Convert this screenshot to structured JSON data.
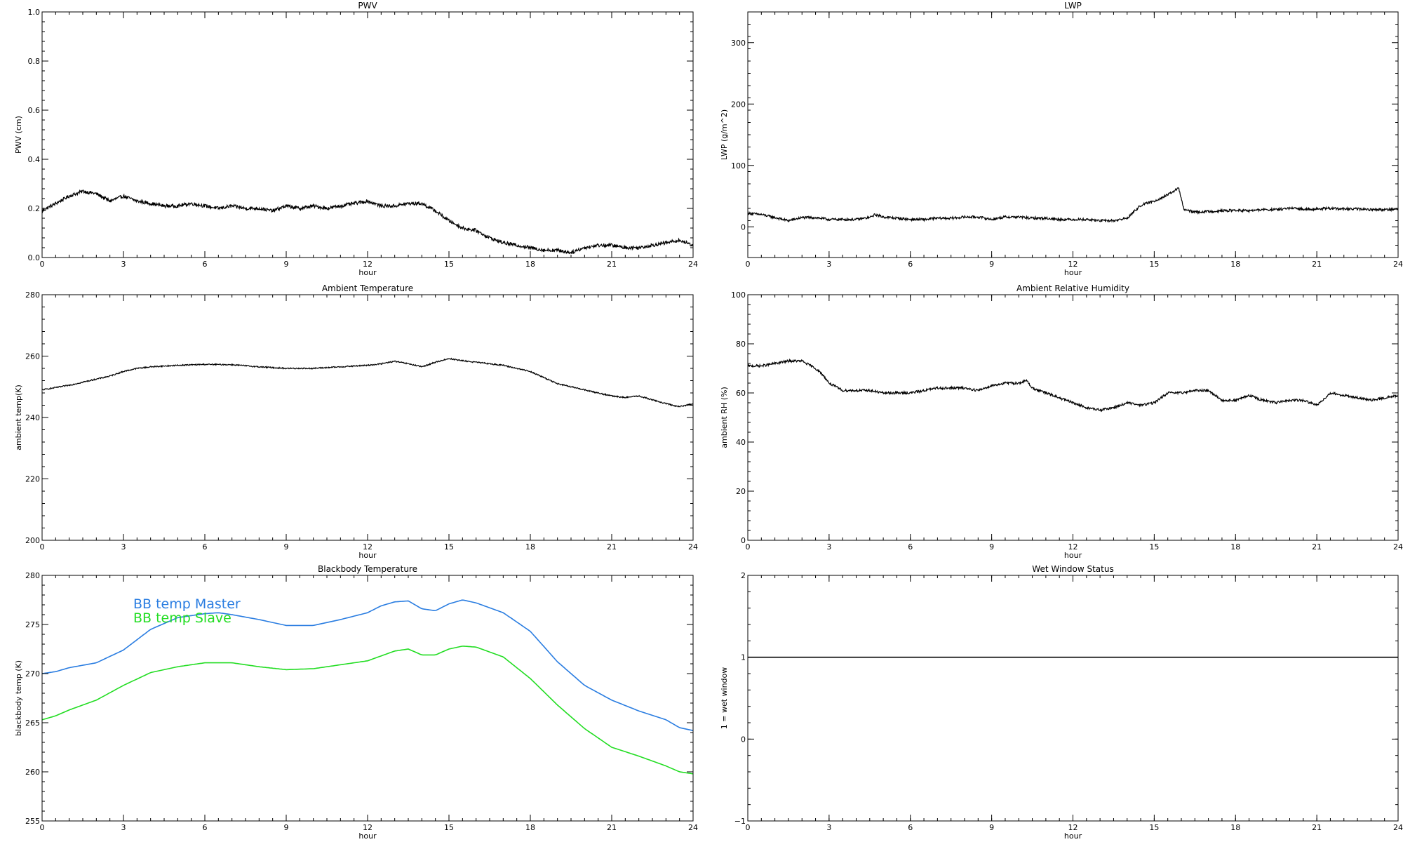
{
  "chart_data": [
    {
      "id": "pwv",
      "type": "line",
      "title": "PWV",
      "xlabel": "hour",
      "ylabel": "PWV (cm)",
      "xlim": [
        0,
        24
      ],
      "ylim": [
        0.0,
        1.0
      ],
      "xticks": [
        0,
        3,
        6,
        9,
        12,
        15,
        18,
        21,
        24
      ],
      "xtick_labels": [
        "0",
        "3",
        "6",
        "9",
        "12",
        "15",
        "18",
        "21",
        "24"
      ],
      "yticks": [
        0.0,
        0.2,
        0.4,
        0.6,
        0.8,
        1.0
      ],
      "ytick_labels": [
        "0.0",
        "0.2",
        "0.4",
        "0.6",
        "0.8",
        "1.0"
      ],
      "series": [
        {
          "color": "#000000",
          "noise": 0.007,
          "x": [
            0,
            0.5,
            1,
            1.5,
            2,
            2.5,
            3,
            3.5,
            4,
            4.5,
            5,
            5.5,
            6,
            6.5,
            7,
            7.5,
            8,
            8.5,
            9,
            9.5,
            10,
            10.5,
            11,
            11.5,
            12,
            12.5,
            13,
            13.5,
            14,
            14.5,
            15,
            15.5,
            16,
            16.5,
            17,
            17.5,
            18,
            18.5,
            19,
            19.5,
            20,
            20.5,
            21,
            21.5,
            22,
            22.5,
            23,
            23.5,
            24
          ],
          "y": [
            0.19,
            0.22,
            0.25,
            0.27,
            0.26,
            0.23,
            0.25,
            0.23,
            0.22,
            0.21,
            0.21,
            0.22,
            0.21,
            0.2,
            0.21,
            0.2,
            0.2,
            0.19,
            0.21,
            0.2,
            0.21,
            0.2,
            0.21,
            0.22,
            0.23,
            0.21,
            0.21,
            0.22,
            0.22,
            0.19,
            0.15,
            0.12,
            0.11,
            0.08,
            0.06,
            0.05,
            0.04,
            0.03,
            0.03,
            0.02,
            0.04,
            0.05,
            0.05,
            0.04,
            0.04,
            0.05,
            0.06,
            0.07,
            0.05
          ]
        }
      ]
    },
    {
      "id": "lwp",
      "type": "line",
      "title": "LWP",
      "xlabel": "hour",
      "ylabel": "LWP (g/m^2)",
      "xlim": [
        0,
        24
      ],
      "ylim": [
        -50,
        350
      ],
      "xticks": [
        0,
        3,
        6,
        9,
        12,
        15,
        18,
        21,
        24
      ],
      "xtick_labels": [
        "0",
        "3",
        "6",
        "9",
        "12",
        "15",
        "18",
        "21",
        "24"
      ],
      "yticks": [
        0,
        100,
        200,
        300
      ],
      "ytick_labels": [
        "0",
        "100",
        "200",
        "300"
      ],
      "series": [
        {
          "color": "#000000",
          "noise": 2.0,
          "x": [
            0,
            0.5,
            1,
            1.5,
            2,
            2.5,
            3,
            3.5,
            4,
            4.5,
            4.7,
            5,
            5.5,
            6,
            6.5,
            7,
            7.5,
            8,
            8.5,
            9,
            9.5,
            10,
            10.5,
            11,
            11.5,
            12,
            12.5,
            13,
            13.5,
            14,
            14.5,
            15,
            15.5,
            15.9,
            16.1,
            16.5,
            17,
            17.5,
            18,
            18.5,
            19,
            19.5,
            20,
            20.5,
            21,
            21.5,
            22,
            22.5,
            23,
            23.5,
            24
          ],
          "y": [
            22,
            20,
            15,
            10,
            15,
            15,
            12,
            12,
            12,
            15,
            20,
            16,
            14,
            12,
            12,
            14,
            14,
            16,
            16,
            12,
            16,
            16,
            14,
            14,
            12,
            12,
            12,
            10,
            10,
            14,
            35,
            42,
            52,
            63,
            28,
            24,
            25,
            26,
            27,
            26,
            28,
            28,
            30,
            29,
            29,
            30,
            29,
            29,
            28,
            28,
            29
          ]
        }
      ]
    },
    {
      "id": "ambient-temp",
      "type": "line",
      "title": "Ambient Temperature",
      "xlabel": "hour",
      "ylabel": "ambient temp(K)",
      "xlim": [
        0,
        24
      ],
      "ylim": [
        200,
        280
      ],
      "xticks": [
        0,
        3,
        6,
        9,
        12,
        15,
        18,
        21,
        24
      ],
      "xtick_labels": [
        "0",
        "3",
        "6",
        "9",
        "12",
        "15",
        "18",
        "21",
        "24"
      ],
      "yticks": [
        200,
        220,
        240,
        260,
        280
      ],
      "ytick_labels": [
        "200",
        "220",
        "240",
        "260",
        "280"
      ],
      "series": [
        {
          "color": "#000000",
          "noise": 0.2,
          "x": [
            0,
            1,
            1.5,
            2,
            2.5,
            3,
            3.5,
            4,
            5,
            6,
            7,
            8,
            9,
            10,
            11,
            12,
            12.5,
            13,
            13.5,
            14,
            14.5,
            15,
            15.5,
            16,
            17,
            18,
            19,
            20,
            21,
            21.5,
            22,
            23,
            23.5,
            24
          ],
          "y": [
            249,
            250.5,
            251.5,
            252.5,
            253.5,
            255,
            256,
            256.5,
            257,
            257.3,
            257.2,
            256.5,
            256,
            256,
            256.5,
            257,
            257.5,
            258.3,
            257.5,
            256.5,
            258,
            259.2,
            258.5,
            258,
            257,
            255,
            251,
            249,
            247,
            246.5,
            247,
            244.5,
            243.5,
            244.5
          ]
        }
      ]
    },
    {
      "id": "ambient-rh",
      "type": "line",
      "title": "Ambient Relative Humidity",
      "xlabel": "hour",
      "ylabel": "ambient RH (%)",
      "xlim": [
        0,
        24
      ],
      "ylim": [
        0,
        100
      ],
      "xticks": [
        0,
        3,
        6,
        9,
        12,
        15,
        18,
        21,
        24
      ],
      "xtick_labels": [
        "0",
        "3",
        "6",
        "9",
        "12",
        "15",
        "18",
        "21",
        "24"
      ],
      "yticks": [
        0,
        20,
        40,
        60,
        80,
        100
      ],
      "ytick_labels": [
        "0",
        "20",
        "40",
        "60",
        "80",
        "100"
      ],
      "series": [
        {
          "color": "#000000",
          "noise": 0.5,
          "x": [
            0,
            0.5,
            1,
            1.5,
            2,
            2.5,
            2.8,
            3,
            3.5,
            4,
            4.5,
            5,
            5.5,
            6,
            6.5,
            7,
            7.5,
            8,
            8.5,
            9,
            9.5,
            10,
            10.3,
            10.5,
            11,
            11.5,
            12,
            12.5,
            13,
            13.5,
            14,
            14.5,
            15,
            15.5,
            16,
            16.5,
            17,
            17.5,
            18,
            18.5,
            19,
            19.5,
            20,
            20.5,
            21,
            21.5,
            22,
            22.5,
            23,
            23.5,
            24
          ],
          "y": [
            71,
            71,
            72,
            73,
            73,
            70,
            67,
            64,
            61,
            61,
            61,
            60,
            60,
            60,
            61,
            62,
            62,
            62,
            61,
            63,
            64,
            64,
            65,
            62,
            60,
            58,
            56,
            54,
            53,
            54,
            56,
            55,
            56,
            60,
            60,
            61,
            61,
            57,
            57,
            59,
            57,
            56,
            57,
            57,
            55,
            60,
            59,
            58,
            57,
            58,
            59
          ]
        }
      ]
    },
    {
      "id": "blackbody-temp",
      "type": "line",
      "title": "Blackbody Temperature",
      "xlabel": "hour",
      "ylabel": "blackbody temp (K)",
      "xlim": [
        0,
        24
      ],
      "ylim": [
        255,
        280
      ],
      "xticks": [
        0,
        3,
        6,
        9,
        12,
        15,
        18,
        21,
        24
      ],
      "xtick_labels": [
        "0",
        "3",
        "6",
        "9",
        "12",
        "15",
        "18",
        "21",
        "24"
      ],
      "yticks": [
        255,
        260,
        265,
        270,
        275,
        280
      ],
      "ytick_labels": [
        "255",
        "260",
        "265",
        "270",
        "275",
        "280"
      ],
      "legend": {
        "position": "top-left"
      },
      "series": [
        {
          "name": "BB temp Master",
          "color": "#2a7de1",
          "noise": 0,
          "x": [
            0,
            0.5,
            1,
            2,
            3,
            4,
            5,
            6,
            6.5,
            7,
            8,
            9,
            10,
            11,
            12,
            12.5,
            13,
            13.5,
            14,
            14.5,
            15,
            15.5,
            16,
            17,
            18,
            19,
            20,
            21,
            22,
            23,
            23.5,
            24
          ],
          "y": [
            270,
            270.2,
            270.6,
            271.1,
            272.4,
            274.5,
            275.7,
            276.1,
            276.2,
            276,
            275.5,
            274.9,
            274.9,
            275.5,
            276.2,
            276.9,
            277.3,
            277.4,
            276.6,
            276.4,
            277.1,
            277.5,
            277.2,
            276.2,
            274.3,
            271.2,
            268.8,
            267.3,
            266.2,
            265.3,
            264.5,
            264.2
          ]
        },
        {
          "name": "BB temp Slave",
          "color": "#22dd22",
          "noise": 0,
          "x": [
            0,
            0.5,
            1,
            2,
            3,
            4,
            5,
            6,
            6.5,
            7,
            8,
            9,
            10,
            11,
            12,
            12.5,
            13,
            13.5,
            14,
            14.5,
            15,
            15.5,
            16,
            17,
            18,
            19,
            20,
            21,
            22,
            23,
            23.5,
            24
          ],
          "y": [
            265.3,
            265.7,
            266.3,
            267.3,
            268.8,
            270.1,
            270.7,
            271.1,
            271.1,
            271.1,
            270.7,
            270.4,
            270.5,
            270.9,
            271.3,
            271.8,
            272.3,
            272.5,
            271.9,
            271.9,
            272.5,
            272.8,
            272.7,
            271.7,
            269.5,
            266.8,
            264.4,
            262.5,
            261.6,
            260.6,
            260,
            259.8
          ]
        }
      ]
    },
    {
      "id": "wet-window",
      "type": "line",
      "title": "Wet Window Status",
      "xlabel": "hour",
      "ylabel": "1 = wet window",
      "xlim": [
        0,
        24
      ],
      "ylim": [
        -1,
        2
      ],
      "xticks": [
        0,
        3,
        6,
        9,
        12,
        15,
        18,
        21,
        24
      ],
      "xtick_labels": [
        "0",
        "3",
        "6",
        "9",
        "12",
        "15",
        "18",
        "21",
        "24"
      ],
      "yticks": [
        -1,
        0,
        1,
        2
      ],
      "ytick_labels": [
        "−1",
        "0",
        "1",
        "2"
      ],
      "series": [
        {
          "color": "#000000",
          "noise": 0,
          "x": [
            0,
            24
          ],
          "y": [
            1,
            1
          ]
        }
      ]
    }
  ]
}
